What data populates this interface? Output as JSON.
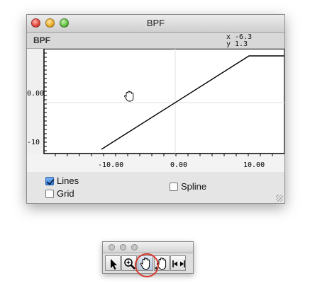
{
  "window": {
    "title": "BPF",
    "header_label": "BPF",
    "coord_x": "x  -6.3",
    "coord_y": "y  1.3"
  },
  "plot": {
    "y_label_0": "0.00",
    "y_label_neg10": "-10",
    "x_label_neg10": "-10.00",
    "x_label_0": "0.00",
    "x_label_10": "10.00",
    "line_points": [
      [
        -10,
        -10
      ],
      [
        10,
        10
      ],
      [
        15,
        10
      ]
    ]
  },
  "controls": {
    "lines_label": "Lines",
    "lines_checked": true,
    "grid_label": "Grid",
    "grid_checked": false,
    "spline_label": "Spline",
    "spline_checked": false
  },
  "palette": {
    "tools": [
      "arrow-tool-icon",
      "zoom-tool-icon",
      "hand-tool-icon",
      "hand-move-tool-icon",
      "fit-range-tool-icon"
    ],
    "selected_tool": "hand-tool-icon",
    "highlight_color": "#d63a2e"
  }
}
